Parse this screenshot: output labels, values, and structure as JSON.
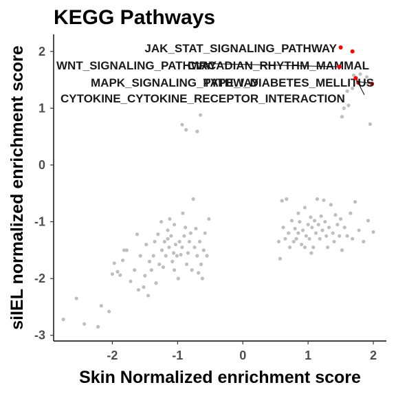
{
  "chart_data": {
    "type": "scatter",
    "title": "KEGG Pathways",
    "xlabel": "Skin Normalized enrichment score",
    "ylabel": "siIEL normalized enrichment score",
    "xlim": [
      -2.9,
      2.2
    ],
    "ylim": [
      -3.1,
      2.3
    ],
    "x_ticks": [
      -2,
      -1,
      0,
      1,
      2
    ],
    "y_ticks": [
      -3,
      -2,
      -1,
      0,
      1,
      2
    ],
    "grid": false,
    "colors": {
      "background": "#pointffffff",
      "point": "#bebebe",
      "highlight": "#ff0000",
      "text": "#000000",
      "tick_text": "#4d4d4d"
    },
    "highlighted": [
      {
        "label": "JAK_STAT_SIGNALING_PATHWAY",
        "x": 1.5,
        "y": 2.07
      },
      {
        "label": "CIRCADIAN_RHYTHM_MAMMAL",
        "x": 1.68,
        "y": 2.0
      },
      {
        "label": "WNT_SIGNALING_PATHWAY",
        "x": 1.48,
        "y": 1.73
      },
      {
        "label": "MAPK_SIGNALING_PATHWAY",
        "x": 1.77,
        "y": 1.45
      },
      {
        "label": "TYPE_I_DIABETES_MELLITUS",
        "x": 1.98,
        "y": 1.43
      },
      {
        "label": "CYTOKINE_CYTOKINE_RECEPTOR_INTERACTION",
        "x": 1.73,
        "y": 1.53
      }
    ],
    "points": [
      [
        -2.75,
        -2.72
      ],
      [
        -2.55,
        -2.35
      ],
      [
        -2.43,
        -2.8
      ],
      [
        -2.22,
        -2.85
      ],
      [
        -2.17,
        -2.48
      ],
      [
        -2.05,
        -2.58
      ],
      [
        -2.0,
        -1.92
      ],
      [
        -1.97,
        -1.73
      ],
      [
        -1.92,
        -1.88
      ],
      [
        -1.88,
        -1.94
      ],
      [
        -1.84,
        -1.68
      ],
      [
        -1.82,
        -1.5
      ],
      [
        -1.78,
        -1.5
      ],
      [
        -1.72,
        -2.05
      ],
      [
        -1.66,
        -1.85
      ],
      [
        -1.62,
        -1.22
      ],
      [
        -1.6,
        -2.2
      ],
      [
        -1.57,
        -1.6
      ],
      [
        -1.52,
        -2.15
      ],
      [
        -1.5,
        -1.95
      ],
      [
        -1.48,
        -1.4
      ],
      [
        -1.45,
        -2.3
      ],
      [
        -1.43,
        -1.7
      ],
      [
        -1.4,
        -1.85
      ],
      [
        -1.37,
        -1.6
      ],
      [
        -1.35,
        -1.35
      ],
      [
        -1.33,
        -2.08
      ],
      [
        -1.3,
        -1.22
      ],
      [
        -1.28,
        -1.75
      ],
      [
        -1.24,
        -1.5
      ],
      [
        -1.22,
        -1.8
      ],
      [
        -1.2,
        -1.35
      ],
      [
        -1.18,
        -1.6
      ],
      [
        -1.15,
        -1.15
      ],
      [
        -1.13,
        -1.45
      ],
      [
        -1.12,
        -0.95
      ],
      [
        -1.1,
        -1.25
      ],
      [
        -1.08,
        -1.7
      ],
      [
        -1.06,
        -1.55
      ],
      [
        -1.05,
        -1.05
      ],
      [
        -1.03,
        -1.4
      ],
      [
        -1.01,
        -1.6
      ],
      [
        -0.99,
        -2.0
      ],
      [
        -0.97,
        -1.35
      ],
      [
        -0.95,
        -1.58
      ],
      [
        -0.93,
        -1.45
      ],
      [
        -0.92,
        -0.85
      ],
      [
        -0.9,
        -1.25
      ],
      [
        -0.88,
        -1.1
      ],
      [
        -0.86,
        -1.75
      ],
      [
        -0.84,
        -1.55
      ],
      [
        -0.82,
        -1.35
      ],
      [
        -0.8,
        -1.2
      ],
      [
        -0.78,
        -1.85
      ],
      [
        -0.76,
        -0.6
      ],
      [
        -0.74,
        -1.45
      ],
      [
        -0.72,
        -1.12
      ],
      [
        -0.7,
        -1.6
      ],
      [
        -0.68,
        -1.9
      ],
      [
        -0.66,
        -1.35
      ],
      [
        -0.64,
        -1.75
      ],
      [
        -0.62,
        -2.0
      ],
      [
        -0.6,
        -1.5
      ],
      [
        -0.58,
        -1.2
      ],
      [
        -0.55,
        -1.6
      ],
      [
        -0.52,
        -0.95
      ],
      [
        -1.15,
        -1.3
      ],
      [
        -1.25,
        -1.0
      ],
      [
        -1.05,
        -1.85
      ],
      [
        -0.93,
        0.71
      ],
      [
        -0.87,
        0.62
      ],
      [
        -0.7,
        0.59
      ],
      [
        -0.65,
        0.88
      ],
      [
        0.55,
        -1.35
      ],
      [
        0.57,
        -1.65
      ],
      [
        0.6,
        -0.63
      ],
      [
        0.62,
        -1.1
      ],
      [
        0.65,
        -1.3
      ],
      [
        0.67,
        -0.6
      ],
      [
        0.7,
        -1.2
      ],
      [
        0.72,
        -1.45
      ],
      [
        0.75,
        -0.98
      ],
      [
        0.78,
        -1.35
      ],
      [
        0.8,
        -1.12
      ],
      [
        0.82,
        -1.3
      ],
      [
        0.85,
        -0.85
      ],
      [
        0.87,
        -1.0
      ],
      [
        0.9,
        -1.4
      ],
      [
        0.92,
        -1.15
      ],
      [
        0.95,
        -0.75
      ],
      [
        0.97,
        -1.25
      ],
      [
        1.0,
        -1.05
      ],
      [
        1.02,
        -1.3
      ],
      [
        1.04,
        -0.92
      ],
      [
        1.06,
        -1.1
      ],
      [
        1.08,
        -1.45
      ],
      [
        1.1,
        -0.98
      ],
      [
        1.12,
        -1.2
      ],
      [
        1.14,
        -0.6
      ],
      [
        1.16,
        -1.05
      ],
      [
        1.18,
        -1.3
      ],
      [
        1.2,
        -0.9
      ],
      [
        1.22,
        -1.15
      ],
      [
        1.24,
        -0.62
      ],
      [
        1.26,
        -1.0
      ],
      [
        1.28,
        -1.25
      ],
      [
        1.3,
        -1.45
      ],
      [
        1.32,
        -1.1
      ],
      [
        1.35,
        -0.7
      ],
      [
        1.38,
        -1.2
      ],
      [
        1.4,
        -1.35
      ],
      [
        1.42,
        -0.88
      ],
      [
        1.45,
        -1.05
      ],
      [
        1.48,
        -1.25
      ],
      [
        1.5,
        -0.95
      ],
      [
        1.52,
        -1.5
      ],
      [
        1.56,
        -1.1
      ],
      [
        1.6,
        -1.25
      ],
      [
        1.65,
        -0.85
      ],
      [
        1.68,
        -1.3
      ],
      [
        1.72,
        -0.65
      ],
      [
        1.78,
        -1.15
      ],
      [
        1.85,
        -1.35
      ],
      [
        1.92,
        -0.98
      ],
      [
        2.0,
        -1.18
      ],
      [
        0.95,
        -1.45
      ],
      [
        1.05,
        -1.55
      ],
      [
        0.85,
        -1.2
      ],
      [
        1.52,
        0.85
      ],
      [
        1.55,
        1.0
      ],
      [
        1.6,
        1.3
      ],
      [
        1.62,
        1.05
      ],
      [
        1.68,
        1.35
      ],
      [
        1.7,
        1.58
      ],
      [
        1.8,
        1.6
      ],
      [
        1.9,
        1.55
      ],
      [
        1.95,
        0.72
      ]
    ]
  }
}
